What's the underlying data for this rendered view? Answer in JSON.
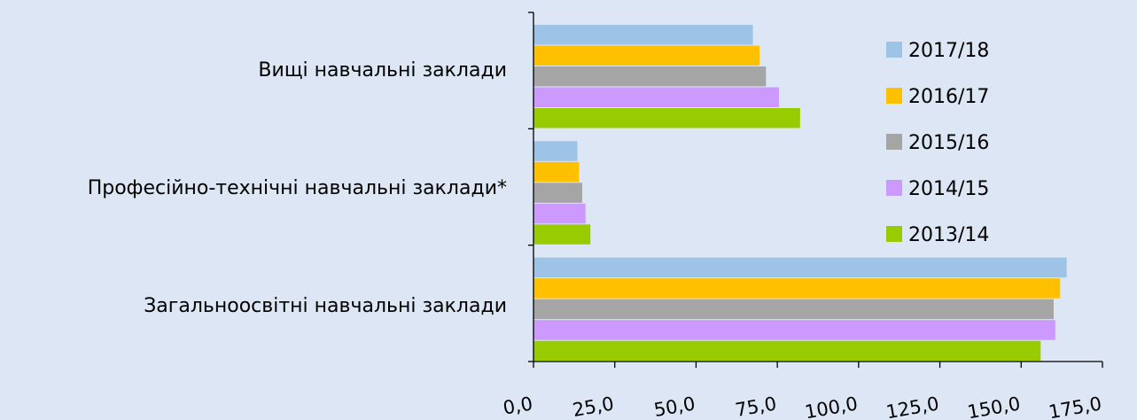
{
  "chart_data": {
    "type": "bar",
    "orientation": "horizontal",
    "categories": [
      "Вищі навчальні заклади",
      "Професійно-технічні навчальні заклади*",
      "Загальноосвітні навчальні заклади"
    ],
    "series": [
      {
        "name": "2017/18",
        "color": "#9dc3e6",
        "values": [
          67.5,
          13.5,
          164.0
        ]
      },
      {
        "name": "2016/17",
        "color": "#ffc000",
        "values": [
          69.5,
          14.0,
          162.0
        ]
      },
      {
        "name": "2015/16",
        "color": "#a5a5a5",
        "values": [
          71.5,
          15.0,
          160.0
        ]
      },
      {
        "name": "2014/15",
        "color": "#cc99ff",
        "values": [
          75.5,
          16.0,
          160.5
        ]
      },
      {
        "name": "2013/14",
        "color": "#99cc00",
        "values": [
          82.0,
          17.5,
          156.0
        ]
      }
    ],
    "xlim": [
      0,
      175
    ],
    "x_ticks": [
      "0,0",
      "25,0",
      "50,0",
      "75,0",
      "100,0",
      "125,0",
      "150,0",
      "175,0"
    ],
    "title": "",
    "xlabel": "",
    "ylabel": "",
    "legend_position": "right",
    "grid": false
  }
}
